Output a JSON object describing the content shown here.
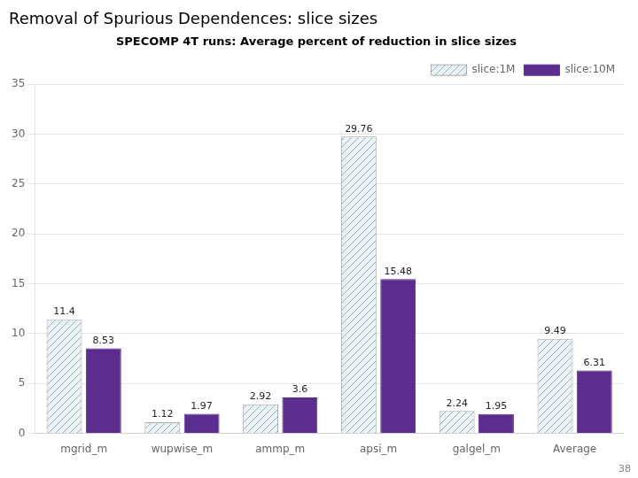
{
  "chart_data": {
    "type": "bar",
    "title": "Removal of Spurious Dependences: slice sizes",
    "subtitle": "SPECOMP 4T runs: Average percent of reduction in slice sizes",
    "categories": [
      "mgrid_m",
      "wupwise_m",
      "ammp_m",
      "apsi_m",
      "galgel_m",
      "Average"
    ],
    "series": [
      {
        "name": "slice:1M",
        "color": "#e8f4f8",
        "values": [
          11.4,
          1.12,
          2.92,
          29.76,
          2.24,
          9.49
        ]
      },
      {
        "name": "slice:10M",
        "color": "#5b2d8e",
        "values": [
          8.53,
          1.97,
          3.6,
          15.48,
          1.95,
          6.31
        ]
      }
    ],
    "ylim": [
      0,
      35
    ],
    "yticks": [
      0,
      5,
      10,
      15,
      20,
      25,
      30,
      35
    ],
    "grid": true,
    "legend": "upper right",
    "data_labels": true,
    "annotations": [
      "38"
    ]
  }
}
